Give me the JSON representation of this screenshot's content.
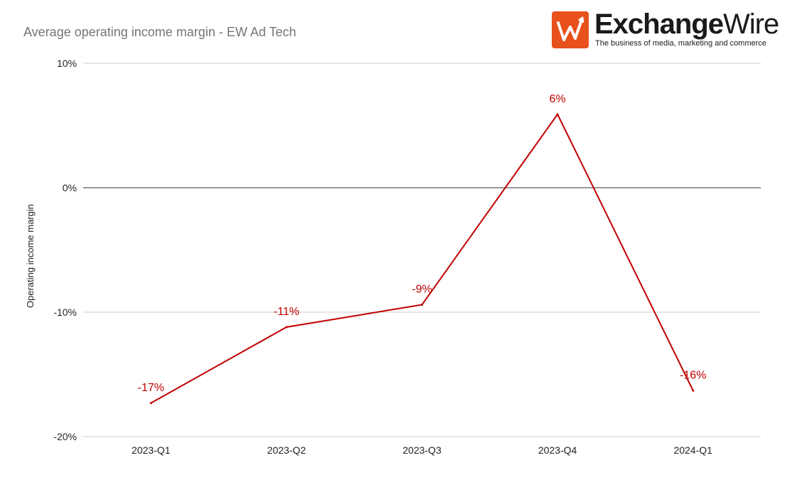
{
  "logo": {
    "brand_bold": "Exchange",
    "brand_thin": "Wire",
    "tagline": "The business of media, marketing and commerce",
    "colors": {
      "box": "#e8501c"
    }
  },
  "chart_data": {
    "type": "line",
    "title": "Average operating income margin - EW Ad Tech",
    "xlabel": "",
    "ylabel": "Operating income margin",
    "categories": [
      "2023-Q1",
      "2023-Q2",
      "2023-Q3",
      "2023-Q4",
      "2024-Q1"
    ],
    "series": [
      {
        "values": [
          -17.3,
          -11.2,
          -9.4,
          5.9,
          -16.3
        ],
        "labels": [
          "-17%",
          "-11%",
          "-9%",
          "6%",
          "-16%"
        ],
        "color": "#c00000"
      }
    ],
    "ylim": [
      -20,
      10
    ],
    "yticks": [
      10,
      0,
      -10,
      -20
    ],
    "ytick_labels": [
      "10%",
      "0%",
      "-10%",
      "-20%"
    ],
    "grid": true,
    "legend": "none"
  }
}
